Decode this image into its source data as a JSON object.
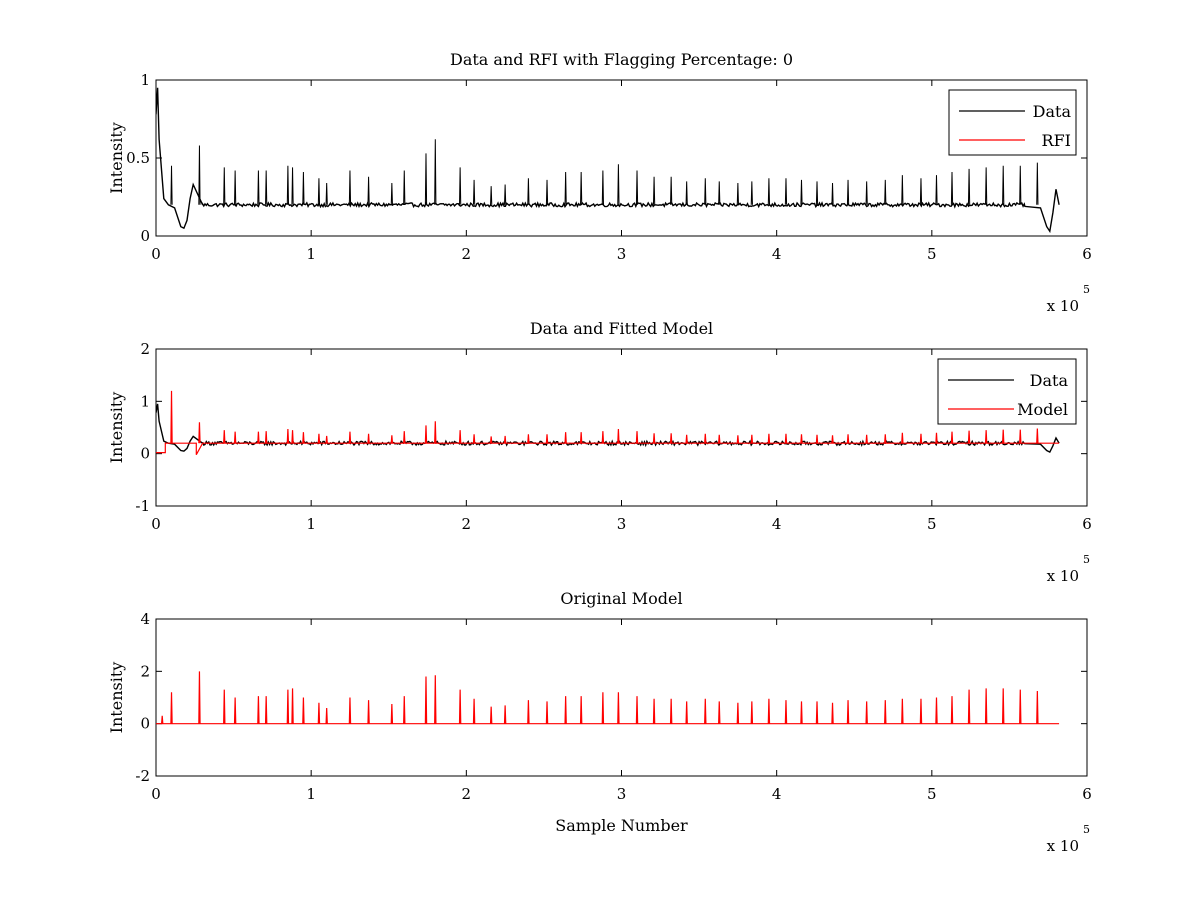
{
  "chart_data": [
    {
      "type": "line",
      "title": "Data and RFI with Flagging Percentage: 0",
      "xlabel": "",
      "ylabel": "Intensity",
      "xlim": [
        0,
        6
      ],
      "ylim": [
        0,
        1
      ],
      "xticks": [
        "0",
        "1",
        "2",
        "3",
        "4",
        "5",
        "6"
      ],
      "yticks": [
        "0",
        "0.5",
        "1"
      ],
      "x_exponent": {
        "base": "x 10",
        "power": "5"
      },
      "legend": {
        "position": "top-right",
        "entries": [
          {
            "name": "Data",
            "color": "#000000"
          },
          {
            "name": "RFI",
            "color": "#ff0000"
          }
        ]
      },
      "baseline": 0.2,
      "x_end": 5.82,
      "spikes": {
        "x": [
          0.1,
          0.28,
          0.44,
          0.51,
          0.66,
          0.71,
          0.85,
          0.88,
          0.95,
          1.05,
          1.1,
          1.25,
          1.37,
          1.52,
          1.6,
          1.74,
          1.8,
          1.96,
          2.05,
          2.16,
          2.25,
          2.4,
          2.52,
          2.64,
          2.74,
          2.88,
          2.98,
          3.1,
          3.21,
          3.32,
          3.42,
          3.54,
          3.63,
          3.75,
          3.84,
          3.95,
          4.06,
          4.16,
          4.26,
          4.36,
          4.46,
          4.58,
          4.7,
          4.81,
          4.93,
          5.03,
          5.13,
          5.24,
          5.35,
          5.46,
          5.57,
          5.68
        ],
        "y": [
          0.45,
          0.58,
          0.44,
          0.42,
          0.42,
          0.42,
          0.45,
          0.44,
          0.41,
          0.37,
          0.34,
          0.42,
          0.38,
          0.34,
          0.42,
          0.53,
          0.62,
          0.44,
          0.36,
          0.32,
          0.33,
          0.37,
          0.36,
          0.41,
          0.41,
          0.42,
          0.46,
          0.42,
          0.38,
          0.38,
          0.35,
          0.37,
          0.35,
          0.34,
          0.35,
          0.37,
          0.37,
          0.36,
          0.35,
          0.34,
          0.36,
          0.35,
          0.36,
          0.39,
          0.37,
          0.39,
          0.41,
          0.43,
          0.44,
          0.45,
          0.45,
          0.47
        ]
      },
      "series": [
        {
          "name": "Data",
          "color": "#000000",
          "x": [
            0,
            0.01,
            0.02,
            0.05,
            0.08,
            0.12,
            0.16,
            0.18,
            0.2,
            0.22,
            0.24,
            0.3,
            5.6,
            5.7,
            5.74,
            5.76,
            5.78,
            5.8,
            5.82
          ],
          "y": [
            0.78,
            0.95,
            0.62,
            0.24,
            0.2,
            0.18,
            0.06,
            0.05,
            0.1,
            0.24,
            0.33,
            0.2,
            0.19,
            0.18,
            0.06,
            0.03,
            0.15,
            0.3,
            0.2
          ]
        },
        {
          "name": "RFI",
          "color": "#ff0000",
          "x": [],
          "y": []
        }
      ]
    },
    {
      "type": "line",
      "title": "Data and Fitted Model",
      "xlabel": "",
      "ylabel": "Intensity",
      "xlim": [
        0,
        6
      ],
      "ylim": [
        -1,
        2
      ],
      "xticks": [
        "0",
        "1",
        "2",
        "3",
        "4",
        "5",
        "6"
      ],
      "yticks": [
        "-1",
        "0",
        "1",
        "2"
      ],
      "x_exponent": {
        "base": "x 10",
        "power": "5"
      },
      "legend": {
        "position": "top-right",
        "entries": [
          {
            "name": "Data",
            "color": "#000000"
          },
          {
            "name": "Model",
            "color": "#ff0000"
          }
        ]
      },
      "baseline": 0.2,
      "x_end": 5.82,
      "spikes": {
        "x": [
          0.1,
          0.28,
          0.44,
          0.51,
          0.66,
          0.71,
          0.85,
          0.88,
          0.95,
          1.05,
          1.1,
          1.25,
          1.37,
          1.52,
          1.6,
          1.74,
          1.8,
          1.96,
          2.05,
          2.16,
          2.25,
          2.4,
          2.52,
          2.64,
          2.74,
          2.88,
          2.98,
          3.1,
          3.21,
          3.32,
          3.42,
          3.54,
          3.63,
          3.75,
          3.84,
          3.95,
          4.06,
          4.16,
          4.26,
          4.36,
          4.46,
          4.58,
          4.7,
          4.81,
          4.93,
          5.03,
          5.13,
          5.24,
          5.35,
          5.46,
          5.57,
          5.68
        ],
        "y": [
          1.2,
          0.6,
          0.45,
          0.42,
          0.42,
          0.43,
          0.47,
          0.45,
          0.41,
          0.38,
          0.34,
          0.42,
          0.38,
          0.35,
          0.43,
          0.54,
          0.62,
          0.45,
          0.37,
          0.33,
          0.34,
          0.37,
          0.37,
          0.41,
          0.41,
          0.43,
          0.47,
          0.43,
          0.39,
          0.39,
          0.36,
          0.38,
          0.36,
          0.35,
          0.36,
          0.38,
          0.38,
          0.37,
          0.36,
          0.35,
          0.37,
          0.36,
          0.37,
          0.4,
          0.38,
          0.4,
          0.42,
          0.44,
          0.45,
          0.46,
          0.46,
          0.48
        ]
      },
      "series": [
        {
          "name": "Data",
          "color": "#000000",
          "x": [
            0,
            0.01,
            0.02,
            0.05,
            0.08,
            0.12,
            0.16,
            0.18,
            0.2,
            0.22,
            0.24,
            0.3,
            5.6,
            5.7,
            5.74,
            5.76,
            5.78,
            5.8,
            5.82
          ],
          "y": [
            0.78,
            0.95,
            0.62,
            0.24,
            0.2,
            0.18,
            0.06,
            0.05,
            0.1,
            0.24,
            0.33,
            0.2,
            0.19,
            0.18,
            0.06,
            0.03,
            0.15,
            0.3,
            0.2
          ]
        },
        {
          "name": "Model",
          "color": "#ff0000",
          "x": [
            0,
            0.06,
            0.06,
            0.26,
            0.26,
            0.3
          ],
          "y": [
            0.02,
            0.02,
            0.2,
            0.2,
            -0.02,
            0.2
          ]
        }
      ]
    },
    {
      "type": "line",
      "title": "Original Model",
      "xlabel": "Sample Number",
      "ylabel": "Intensity",
      "xlim": [
        0,
        6
      ],
      "ylim": [
        -2,
        4
      ],
      "xticks": [
        "0",
        "1",
        "2",
        "3",
        "4",
        "5",
        "6"
      ],
      "yticks": [
        "-2",
        "0",
        "2",
        "4"
      ],
      "x_exponent": {
        "base": "x 10",
        "power": "5"
      },
      "legend": null,
      "baseline": 0,
      "x_end": 5.82,
      "spikes": {
        "x": [
          0.04,
          0.1,
          0.28,
          0.44,
          0.51,
          0.66,
          0.71,
          0.85,
          0.88,
          0.95,
          1.05,
          1.1,
          1.25,
          1.37,
          1.52,
          1.6,
          1.74,
          1.8,
          1.96,
          2.05,
          2.16,
          2.25,
          2.4,
          2.52,
          2.64,
          2.74,
          2.88,
          2.98,
          3.1,
          3.21,
          3.32,
          3.42,
          3.54,
          3.63,
          3.75,
          3.84,
          3.95,
          4.06,
          4.16,
          4.26,
          4.36,
          4.46,
          4.58,
          4.7,
          4.81,
          4.93,
          5.03,
          5.13,
          5.24,
          5.35,
          5.46,
          5.57,
          5.68
        ],
        "y": [
          0.3,
          1.2,
          2.0,
          1.3,
          1.0,
          1.05,
          1.05,
          1.3,
          1.35,
          1.0,
          0.8,
          0.6,
          1.0,
          0.9,
          0.75,
          1.05,
          1.8,
          1.85,
          1.3,
          0.95,
          0.65,
          0.7,
          0.9,
          0.85,
          1.05,
          1.05,
          1.2,
          1.2,
          1.05,
          0.95,
          0.95,
          0.85,
          0.95,
          0.85,
          0.8,
          0.85,
          0.95,
          0.9,
          0.85,
          0.85,
          0.8,
          0.9,
          0.85,
          0.9,
          0.95,
          0.95,
          1.0,
          1.05,
          1.3,
          1.35,
          1.35,
          1.3,
          1.25
        ]
      },
      "series": [
        {
          "name": "",
          "color": "#ff0000",
          "x": [],
          "y": []
        }
      ]
    }
  ]
}
